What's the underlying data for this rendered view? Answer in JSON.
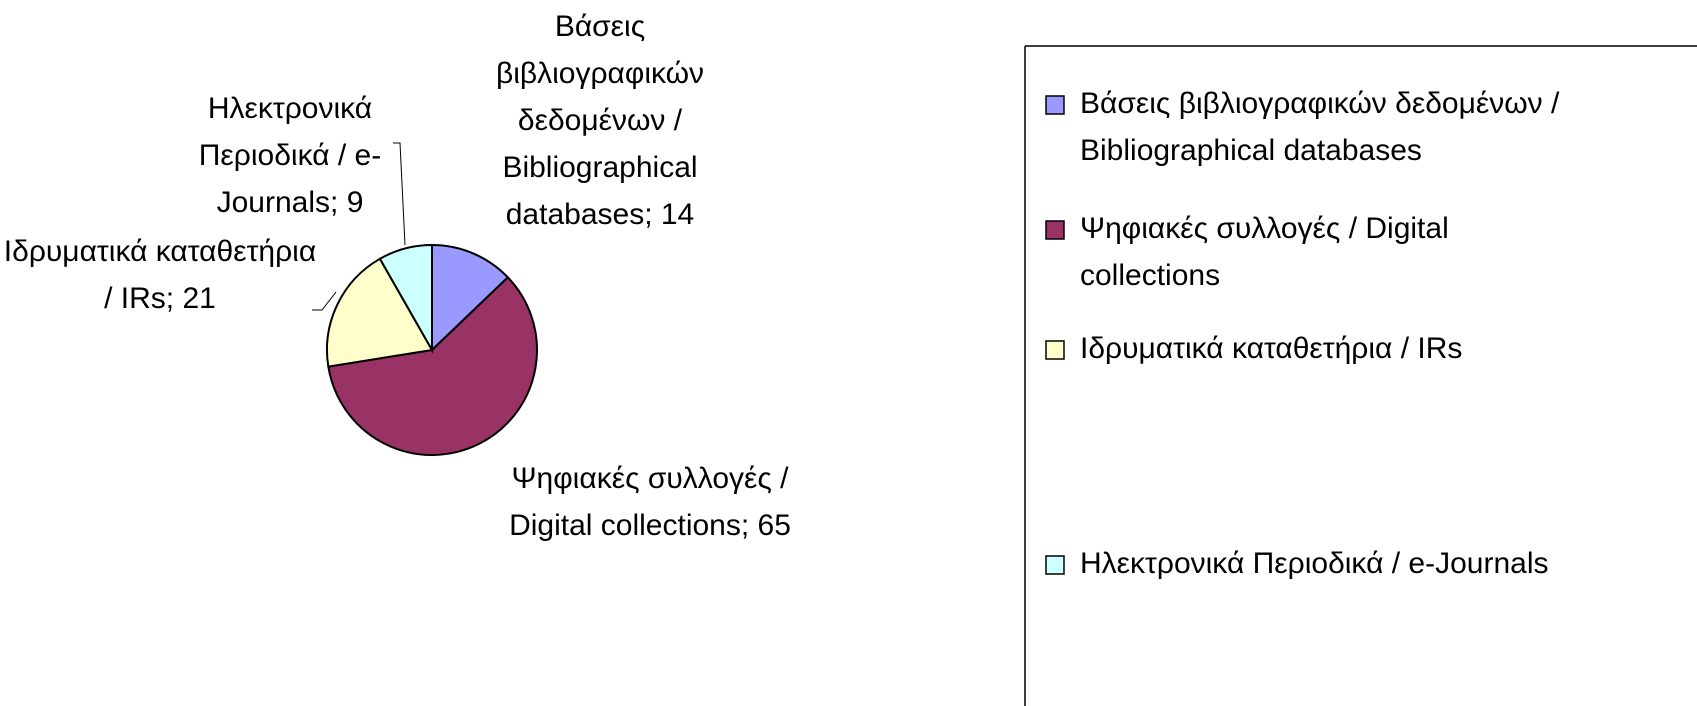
{
  "chart_data": {
    "type": "pie",
    "categories": [
      "Βάσεις βιβλιογραφικών δεδομένων / Bibliographical databases",
      "Ψηφιακές συλλογές / Digital collections",
      "Ιδρυματικά καταθετήρια / IRs",
      "Ηλεκτρονικά Περιοδικά / e-Journals"
    ],
    "values": [
      14,
      65,
      21,
      9
    ],
    "value_labels": [
      "Βάσεις βιβλιογραφικών δεδομένων / Bibliographical databases; 14",
      "Ψηφιακές συλλογές / Digital collections; 65",
      "Ιδρυματικά καταθετήρια / IRs; 21",
      "Ηλεκτρονικά Περιοδικά / e-Journals; 9"
    ],
    "colors": [
      "#9999ff",
      "#993366",
      "#ffffcc",
      "#ccffff"
    ],
    "legend": "right"
  }
}
